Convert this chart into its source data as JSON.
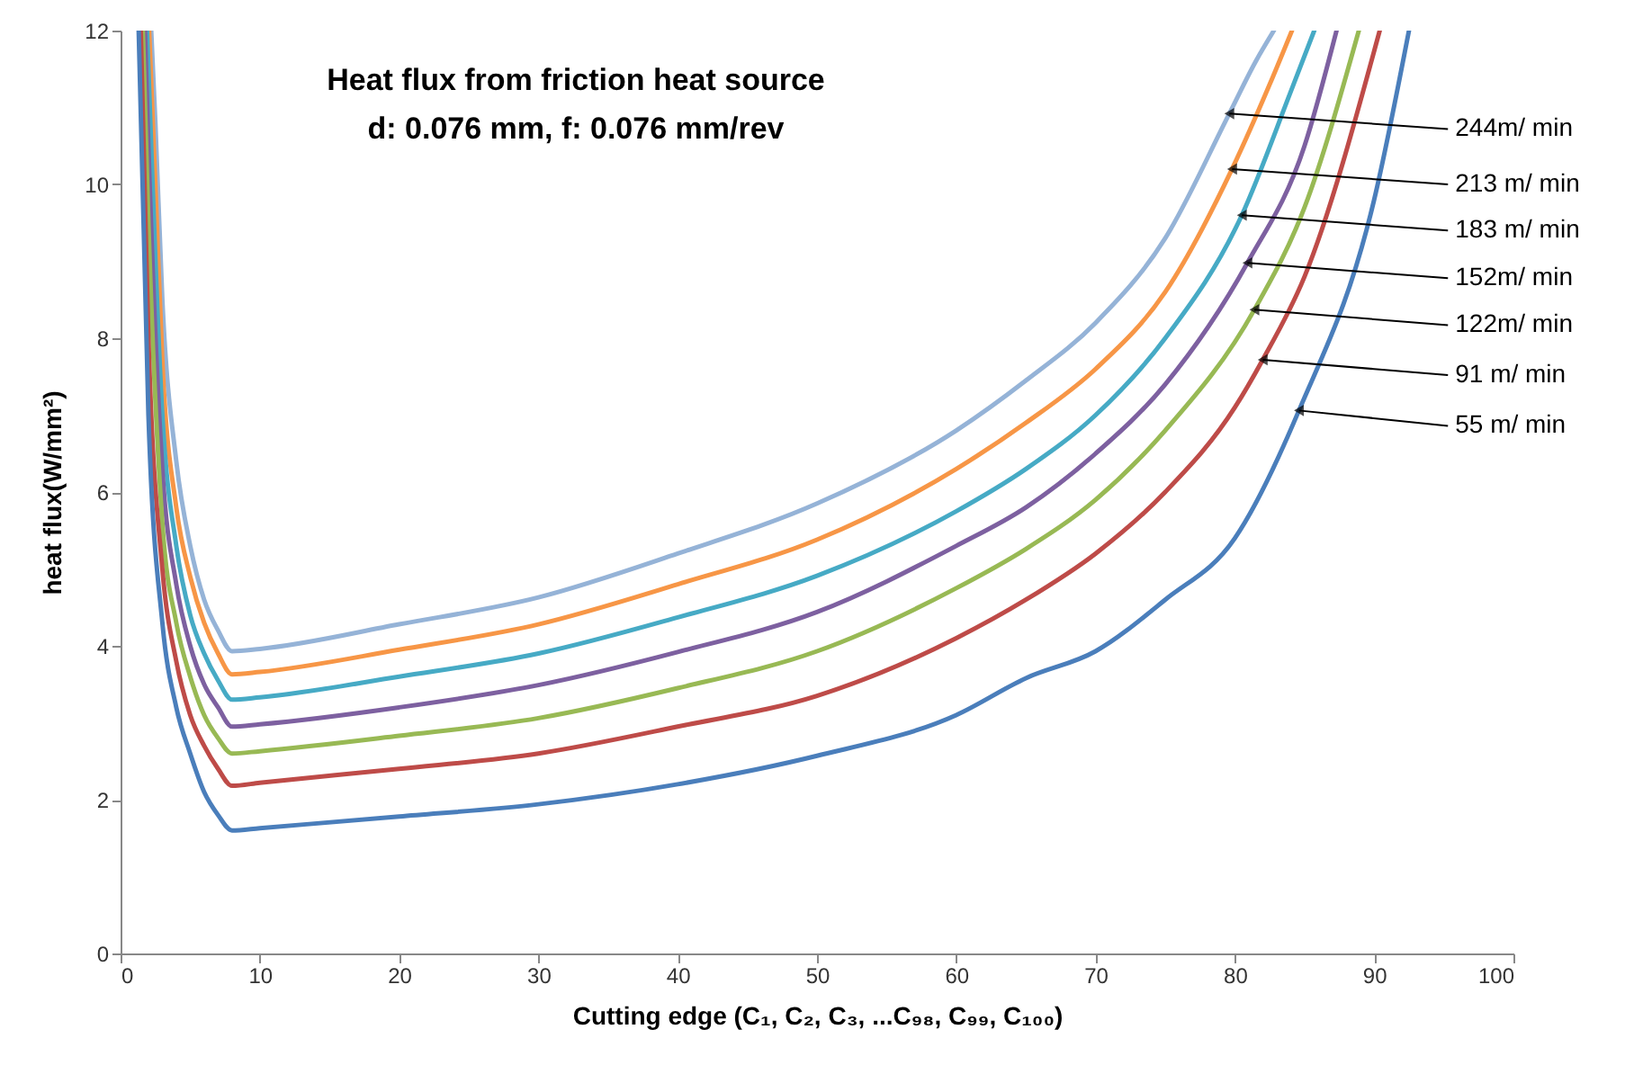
{
  "chart_data": {
    "type": "line",
    "title": "Heat flux from friction heat source",
    "subtitle": "d: 0.076 mm, f: 0.076 mm/rev",
    "xlabel": "Cutting edge (C₁, C₂, C₃, ...C₉₈, C₉₉, C₁₀₀)",
    "ylabel": "heat flux(W/mm²)",
    "xlim": [
      0,
      100
    ],
    "ylim": [
      0,
      12
    ],
    "xticks": [
      0,
      10,
      20,
      30,
      40,
      50,
      60,
      70,
      80,
      90,
      100
    ],
    "yticks": [
      0,
      2,
      4,
      6,
      8,
      10,
      12
    ],
    "series": [
      {
        "name": "244m/ min",
        "color": "#95b3d7",
        "x": [
          2.2,
          2.5,
          3,
          4,
          5,
          6,
          7,
          8,
          10,
          20,
          30,
          40,
          50,
          60,
          65,
          70,
          75,
          79.6,
          81.5,
          82.8
        ],
        "values": [
          12,
          10.8,
          8.5,
          6.4,
          5.3,
          4.6,
          4.2,
          3.93,
          3.96,
          4.28,
          4.63,
          5.2,
          5.85,
          6.8,
          7.45,
          8.2,
          9.3,
          10.92,
          11.6,
          12
        ]
      },
      {
        "name": "213  m/ min",
        "color": "#f79646",
        "x": [
          2.05,
          2.5,
          3,
          4,
          5,
          6,
          7,
          8,
          10,
          20,
          30,
          40,
          50,
          60,
          65,
          70,
          75,
          79.8,
          82.5,
          84.1
        ],
        "values": [
          12,
          10,
          7.7,
          5.8,
          4.9,
          4.3,
          3.9,
          3.63,
          3.66,
          3.95,
          4.28,
          4.8,
          5.38,
          6.3,
          6.9,
          7.6,
          8.6,
          10.2,
          11.3,
          12
        ]
      },
      {
        "name": "183 m/ min",
        "color": "#46aac5",
        "x": [
          1.9,
          2,
          3,
          4,
          5,
          6,
          7,
          8,
          10,
          20,
          30,
          40,
          50,
          60,
          65,
          70,
          75,
          80.5,
          84,
          85.7
        ],
        "values": [
          12,
          11.5,
          7,
          5.3,
          4.4,
          3.9,
          3.55,
          3.3,
          3.33,
          3.6,
          3.9,
          4.37,
          4.91,
          5.75,
          6.3,
          7,
          8,
          9.6,
          11.2,
          12
        ]
      },
      {
        "name": "152m/ min",
        "color": "#7d60a0",
        "x": [
          1.75,
          2,
          3,
          4,
          5,
          6,
          7,
          8,
          10,
          20,
          30,
          40,
          50,
          60,
          65,
          70,
          75,
          80.9,
          85,
          87.3
        ],
        "values": [
          12,
          10.5,
          6.3,
          4.8,
          4,
          3.5,
          3.2,
          2.95,
          2.98,
          3.2,
          3.49,
          3.92,
          4.44,
          5.3,
          5.8,
          6.5,
          7.4,
          8.98,
          10.5,
          12
        ]
      },
      {
        "name": "122m/ min",
        "color": "#98b954",
        "x": [
          1.6,
          2,
          3,
          4,
          5,
          6,
          7,
          8,
          10,
          20,
          30,
          40,
          50,
          60,
          65,
          70,
          75,
          81.4,
          85,
          88.9
        ],
        "values": [
          12,
          9.5,
          5.6,
          4.3,
          3.6,
          3.1,
          2.8,
          2.6,
          2.63,
          2.83,
          3.06,
          3.45,
          3.93,
          4.75,
          5.26,
          5.9,
          6.8,
          8.37,
          9.7,
          12
        ]
      },
      {
        "name": "91 m/ min",
        "color": "#be4b48",
        "x": [
          1.45,
          2,
          3,
          4,
          5,
          6,
          7,
          8,
          10,
          20,
          30,
          40,
          50,
          60,
          65,
          70,
          75,
          80,
          82,
          85,
          90.4
        ],
        "values": [
          12,
          8,
          5,
          3.8,
          3.1,
          2.7,
          2.4,
          2.18,
          2.22,
          2.4,
          2.6,
          2.95,
          3.35,
          4.1,
          4.6,
          5.2,
          6,
          7.1,
          7.72,
          8.8,
          12
        ]
      },
      {
        "name": "55 m/ min",
        "color": "#4a7ebb",
        "x": [
          1.3,
          2,
          3,
          4,
          5,
          6,
          7,
          8,
          10,
          20,
          30,
          40,
          50,
          60,
          65,
          70,
          75,
          80,
          84.6,
          90,
          92.5
        ],
        "values": [
          12,
          7,
          4.3,
          3.2,
          2.6,
          2.1,
          1.8,
          1.6,
          1.63,
          1.78,
          1.94,
          2.2,
          2.57,
          3.1,
          3.58,
          3.93,
          4.6,
          5.4,
          7.06,
          9.8,
          12
        ]
      }
    ]
  }
}
